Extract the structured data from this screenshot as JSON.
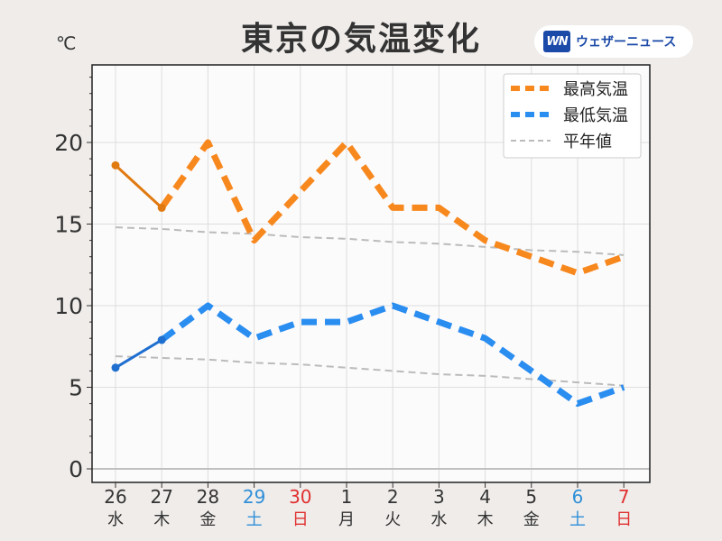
{
  "header": {
    "title": "東京の気温変化",
    "unit": "℃",
    "logo_mark": "WN",
    "logo_text": "ウェザーニュース"
  },
  "chart_data": {
    "type": "line",
    "title": "東京の気温変化",
    "ylabel": "℃",
    "ylim": [
      0,
      25
    ],
    "yticks": [
      0,
      5,
      10,
      15,
      20
    ],
    "grid": true,
    "legend_position": "top-right",
    "categories": [
      {
        "date": "26",
        "weekday": "水",
        "color": "#333333"
      },
      {
        "date": "27",
        "weekday": "木",
        "color": "#333333"
      },
      {
        "date": "28",
        "weekday": "金",
        "color": "#333333"
      },
      {
        "date": "29",
        "weekday": "土",
        "color": "#2f8fd8"
      },
      {
        "date": "30",
        "weekday": "日",
        "color": "#e03030"
      },
      {
        "date": "1",
        "weekday": "月",
        "color": "#333333"
      },
      {
        "date": "2",
        "weekday": "火",
        "color": "#333333"
      },
      {
        "date": "3",
        "weekday": "水",
        "color": "#333333"
      },
      {
        "date": "4",
        "weekday": "木",
        "color": "#333333"
      },
      {
        "date": "5",
        "weekday": "金",
        "color": "#333333"
      },
      {
        "date": "6",
        "weekday": "土",
        "color": "#2f8fd8"
      },
      {
        "date": "7",
        "weekday": "日",
        "color": "#e03030"
      }
    ],
    "series": [
      {
        "name": "最高気温",
        "values": [
          18.6,
          16,
          20,
          14,
          17,
          20,
          16,
          16,
          14,
          13,
          12,
          13
        ],
        "observed_count": 2,
        "color_observed": "#e07a10",
        "color_forecast": "#f7881e"
      },
      {
        "name": "最低気温",
        "values": [
          6.2,
          7.9,
          10,
          8,
          9,
          9,
          10,
          9,
          8,
          6,
          4,
          5
        ],
        "observed_count": 2,
        "color_observed": "#1f6fd0",
        "color_forecast": "#2a8df0"
      },
      {
        "name": "平年値",
        "lines": [
          [
            14.8,
            14.7,
            14.5,
            14.4,
            14.2,
            14.1,
            13.9,
            13.8,
            13.6,
            13.4,
            13.3,
            13.1
          ],
          [
            6.9,
            6.8,
            6.7,
            6.5,
            6.4,
            6.2,
            6.0,
            5.8,
            5.7,
            5.5,
            5.3,
            5.1
          ]
        ],
        "color": "#bbbbbb"
      }
    ]
  }
}
